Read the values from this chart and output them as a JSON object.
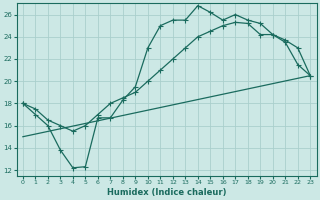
{
  "xlabel": "Humidex (Indice chaleur)",
  "bg_color": "#cce8e5",
  "line_color": "#1a6b5e",
  "grid_color": "#aacfcc",
  "xlim": [
    -0.5,
    23.5
  ],
  "ylim": [
    11.5,
    27
  ],
  "xticks": [
    0,
    1,
    2,
    3,
    4,
    5,
    6,
    7,
    8,
    9,
    10,
    11,
    12,
    13,
    14,
    15,
    16,
    17,
    18,
    19,
    20,
    21,
    22,
    23
  ],
  "yticks": [
    12,
    14,
    16,
    18,
    20,
    22,
    24,
    26
  ],
  "line1_x": [
    0,
    1,
    2,
    3,
    4,
    5,
    6,
    7,
    8,
    9,
    10,
    11,
    12,
    13,
    14,
    15,
    16,
    17,
    18,
    19,
    20,
    21,
    22,
    23
  ],
  "line1_y": [
    18,
    17,
    16,
    13.8,
    12.2,
    12.3,
    16.7,
    16.7,
    18.3,
    19.5,
    23,
    25,
    25.5,
    25.5,
    26.8,
    26.2,
    25.5,
    26,
    25.5,
    25.2,
    24.2,
    23.5,
    21.5,
    20.5
  ],
  "line2_x": [
    0,
    1,
    2,
    3,
    4,
    5,
    6,
    7,
    8,
    9,
    10,
    11,
    12,
    13,
    14,
    15,
    16,
    17,
    18,
    19,
    20,
    21,
    22,
    23
  ],
  "line2_y": [
    18,
    17.5,
    16.5,
    16,
    15.5,
    16,
    17,
    18,
    18.5,
    19,
    20,
    21,
    22,
    23,
    24,
    24.5,
    25,
    25.3,
    25.2,
    24.2,
    24.2,
    23.7,
    23.0,
    20.5
  ],
  "line3_x": [
    0,
    23
  ],
  "line3_y": [
    15,
    20.5
  ]
}
